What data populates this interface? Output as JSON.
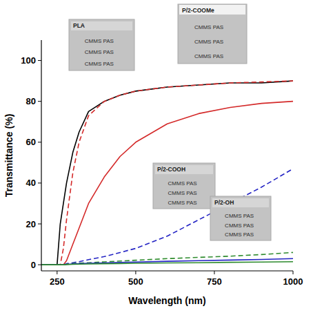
{
  "chart_data": {
    "type": "line",
    "x_label": "Wavelength (nm)",
    "y_label": "Transmittance (%)",
    "x": [
      200,
      250,
      260,
      270,
      280,
      300,
      320,
      350,
      400,
      450,
      500,
      600,
      700,
      800,
      900,
      1000
    ],
    "series": [
      {
        "color": "#000000",
        "line_style": "solid",
        "values": [
          0,
          0,
          20,
          30,
          40,
          55,
          65,
          75,
          80,
          83,
          85,
          87,
          88,
          89,
          89,
          90
        ]
      },
      {
        "color": "#d42a2a",
        "line_style": "dashed",
        "values": [
          0,
          0,
          0,
          8,
          22,
          45,
          60,
          73,
          80,
          83,
          85,
          87,
          88,
          89,
          89.5,
          90
        ]
      },
      {
        "color": "#d42a2a",
        "line_style": "solid",
        "values": [
          0,
          0,
          0,
          0,
          2,
          10,
          18,
          30,
          43,
          53,
          60,
          69,
          74,
          77,
          79,
          80
        ]
      },
      {
        "color": "#2323c4",
        "line_style": "dashed",
        "values": [
          0,
          0,
          0,
          0,
          0.5,
          1,
          1.5,
          2.5,
          4,
          6,
          8,
          14,
          22,
          30,
          38,
          47
        ]
      },
      {
        "color": "#2e8b2e",
        "line_style": "dashed",
        "values": [
          0,
          0,
          0,
          0,
          0.3,
          0.6,
          0.8,
          1,
          1.4,
          1.8,
          2.2,
          3,
          3.6,
          4.2,
          5,
          6
        ]
      },
      {
        "color": "#2323c4",
        "line_style": "solid",
        "values": [
          0,
          0,
          0,
          0,
          0.2,
          0.4,
          0.5,
          0.7,
          0.9,
          1.1,
          1.3,
          1.7,
          2,
          2.3,
          2.6,
          3
        ]
      },
      {
        "color": "#2e8b2e",
        "line_style": "solid",
        "values": [
          0,
          0,
          0,
          0,
          0.1,
          0.2,
          0.3,
          0.4,
          0.5,
          0.6,
          0.7,
          0.9,
          1,
          1.2,
          1.3,
          1.5
        ]
      }
    ],
    "xlim": [
      200,
      1000
    ],
    "xticks": [
      250,
      500,
      750,
      1000
    ],
    "ylim": [
      -3,
      110
    ],
    "yticks": [
      0,
      20,
      40,
      60,
      80,
      100
    ],
    "grid": false,
    "insets": [
      {
        "label": "PLA",
        "rows": [
          "CMMS PAS",
          "CMMS PAS",
          "CMMS PAS"
        ]
      },
      {
        "label": "P/2-COOMe",
        "rows": [
          "CMMS PAS",
          "CMMS PAS",
          "CMMS PAS"
        ]
      },
      {
        "label": "P/2-COOH",
        "rows": [
          "CMMS PAS",
          "CMMS PAS",
          "CMMS PAS"
        ]
      },
      {
        "label": "P/2-OH",
        "rows": [
          "CMMS PAS",
          "CMMS PAS",
          "CMMS PAS"
        ]
      }
    ]
  }
}
